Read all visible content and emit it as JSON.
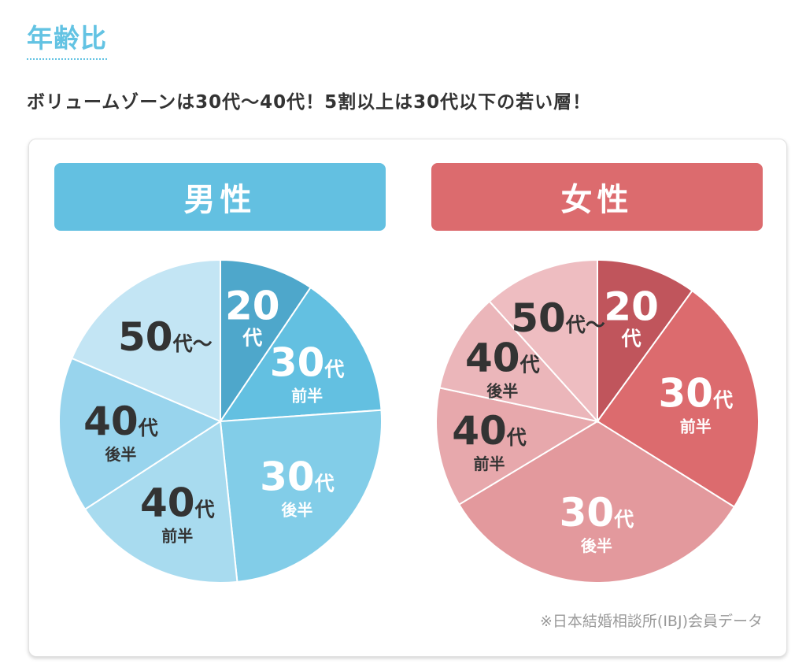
{
  "section": {
    "title": "年齢比"
  },
  "lead": "ボリュームゾーンは30代〜40代！5割以上は30代以下の若い層！",
  "source": "※日本結婚相談所(IBJ)会員データ",
  "chart_data": [
    {
      "type": "pie",
      "title": "男性",
      "header_color": "#63c0e1",
      "slices": [
        {
          "num": "20",
          "suffix": "代",
          "sub": "",
          "color": "#4ea7cb",
          "text_color": "#ffffff",
          "start_deg": 0,
          "end_deg": 34
        },
        {
          "num": "30",
          "suffix": "代",
          "sub": "前半",
          "color": "#63c0e1",
          "text_color": "#ffffff",
          "start_deg": 34,
          "end_deg": 86
        },
        {
          "num": "30",
          "suffix": "代",
          "sub": "後半",
          "color": "#82cde8",
          "text_color": "#ffffff",
          "start_deg": 86,
          "end_deg": 174
        },
        {
          "num": "40",
          "suffix": "代",
          "sub": "前半",
          "color": "#a8dbef",
          "text_color": "#333333",
          "start_deg": 174,
          "end_deg": 237
        },
        {
          "num": "40",
          "suffix": "代",
          "sub": "後半",
          "color": "#98d4ed",
          "text_color": "#333333",
          "start_deg": 237,
          "end_deg": 293
        },
        {
          "num": "50",
          "suffix": "代〜",
          "sub": "",
          "color": "#c3e5f4",
          "text_color": "#333333",
          "start_deg": 293,
          "end_deg": 360
        }
      ]
    },
    {
      "type": "pie",
      "title": "女性",
      "header_color": "#dc6b6e",
      "slices": [
        {
          "num": "20",
          "suffix": "代",
          "sub": "",
          "color": "#c0555c",
          "text_color": "#ffffff",
          "start_deg": 0,
          "end_deg": 36
        },
        {
          "num": "30",
          "suffix": "代",
          "sub": "前半",
          "color": "#dc6b6e",
          "text_color": "#ffffff",
          "start_deg": 36,
          "end_deg": 122
        },
        {
          "num": "30",
          "suffix": "代",
          "sub": "後半",
          "color": "#e3999d",
          "text_color": "#ffffff",
          "start_deg": 122,
          "end_deg": 239
        },
        {
          "num": "40",
          "suffix": "代",
          "sub": "前半",
          "color": "#e7a8ac",
          "text_color": "#333333",
          "start_deg": 239,
          "end_deg": 282
        },
        {
          "num": "40",
          "suffix": "代",
          "sub": "後半",
          "color": "#ebb6ba",
          "text_color": "#333333",
          "start_deg": 282,
          "end_deg": 318
        },
        {
          "num": "50",
          "suffix": "代〜",
          "sub": "",
          "color": "#eebdc1",
          "text_color": "#333333",
          "start_deg": 318,
          "end_deg": 360
        }
      ]
    }
  ]
}
